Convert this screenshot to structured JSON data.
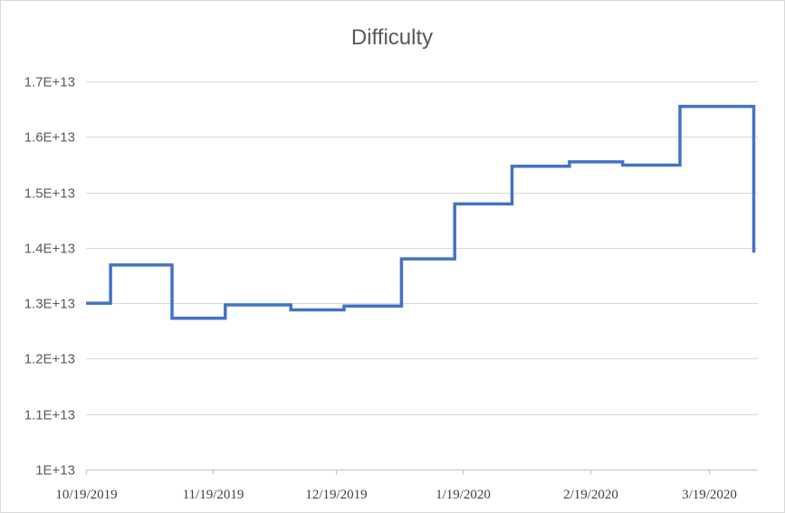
{
  "chart_data": {
    "type": "line",
    "title": "Difficulty",
    "xlabel": "",
    "ylabel": "",
    "line_style": "step",
    "grid": true,
    "legend": "none",
    "colors": {
      "series": "#4472C4",
      "grid": "#d9d9d9",
      "axis": "#bfbfbf",
      "text": "#595959"
    },
    "x_range": [
      "2019-10-19",
      "2020-03-31"
    ],
    "ylim": [
      10000000000000,
      17000000000000
    ],
    "y_ticks": [
      {
        "value": 10000000000000,
        "label": "1E+13"
      },
      {
        "value": 11000000000000,
        "label": "1.1E+13"
      },
      {
        "value": 12000000000000,
        "label": "1.2E+13"
      },
      {
        "value": 13000000000000,
        "label": "1.3E+13"
      },
      {
        "value": 14000000000000,
        "label": "1.4E+13"
      },
      {
        "value": 15000000000000,
        "label": "1.5E+13"
      },
      {
        "value": 16000000000000,
        "label": "1.6E+13"
      },
      {
        "value": 17000000000000,
        "label": "1.7E+13"
      }
    ],
    "x_ticks": [
      {
        "date": "2019-10-19",
        "label": "10/19/2019"
      },
      {
        "date": "2019-11-19",
        "label": "11/19/2019"
      },
      {
        "date": "2019-12-19",
        "label": "12/19/2019"
      },
      {
        "date": "2020-01-19",
        "label": "1/19/2020"
      },
      {
        "date": "2020-02-19",
        "label": "2/19/2020"
      },
      {
        "date": "2020-03-19",
        "label": "3/19/2020"
      }
    ],
    "series": [
      {
        "points": [
          {
            "x": "2019-10-19",
            "y": 13000000000000
          },
          {
            "x": "2019-10-25",
            "y": 13690000000000
          },
          {
            "x": "2019-11-09",
            "y": 12730000000000
          },
          {
            "x": "2019-11-22",
            "y": 12970000000000
          },
          {
            "x": "2019-12-08",
            "y": 12880000000000
          },
          {
            "x": "2019-12-21",
            "y": 12950000000000
          },
          {
            "x": "2020-01-04",
            "y": 13800000000000
          },
          {
            "x": "2020-01-17",
            "y": 14790000000000
          },
          {
            "x": "2020-01-31",
            "y": 15470000000000
          },
          {
            "x": "2020-02-14",
            "y": 15550000000000
          },
          {
            "x": "2020-02-27",
            "y": 15490000000000
          },
          {
            "x": "2020-03-12",
            "y": 16550000000000
          },
          {
            "x": "2020-03-30",
            "y": 13910000000000
          }
        ]
      }
    ]
  }
}
